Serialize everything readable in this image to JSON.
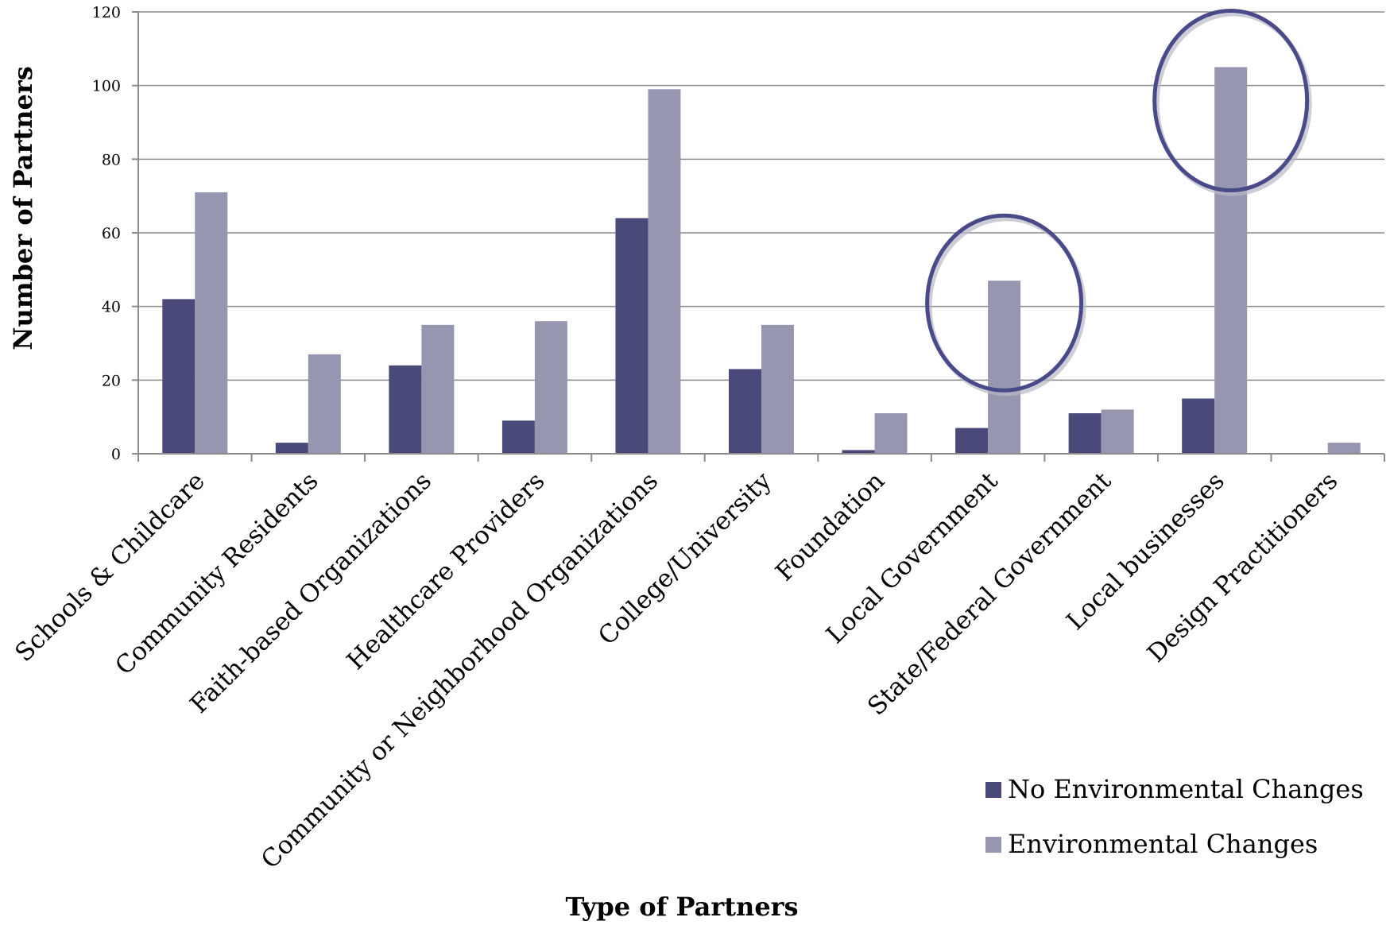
{
  "chart_data": {
    "type": "bar",
    "title": "",
    "xlabel": "Type of Partners",
    "ylabel": "Number of Partners",
    "ylim": [
      0,
      120
    ],
    "yticks": [
      0,
      20,
      40,
      60,
      80,
      100,
      120
    ],
    "grid": true,
    "legend_position": "bottom-right",
    "categories": [
      "Schools & Childcare",
      "Community Residents",
      "Faith-based Organizations",
      "Healthcare Providers",
      "Community or Neighborhood Organizations",
      "College/University",
      "Foundation",
      "Local Government",
      "State/Federal Government",
      "Local businesses",
      "Design Practitioners"
    ],
    "series": [
      {
        "name": "No Environmental Changes",
        "color": "#4a4a7a",
        "values": [
          42,
          3,
          24,
          9,
          64,
          23,
          1,
          7,
          11,
          15,
          0
        ]
      },
      {
        "name": "Environmental Changes",
        "color": "#9696b0",
        "values": [
          71,
          27,
          35,
          36,
          99,
          35,
          11,
          47,
          12,
          105,
          3
        ]
      }
    ],
    "highlighted_categories": [
      "Local Government",
      "Local businesses"
    ],
    "highlight_color": "#4a4a8a"
  }
}
